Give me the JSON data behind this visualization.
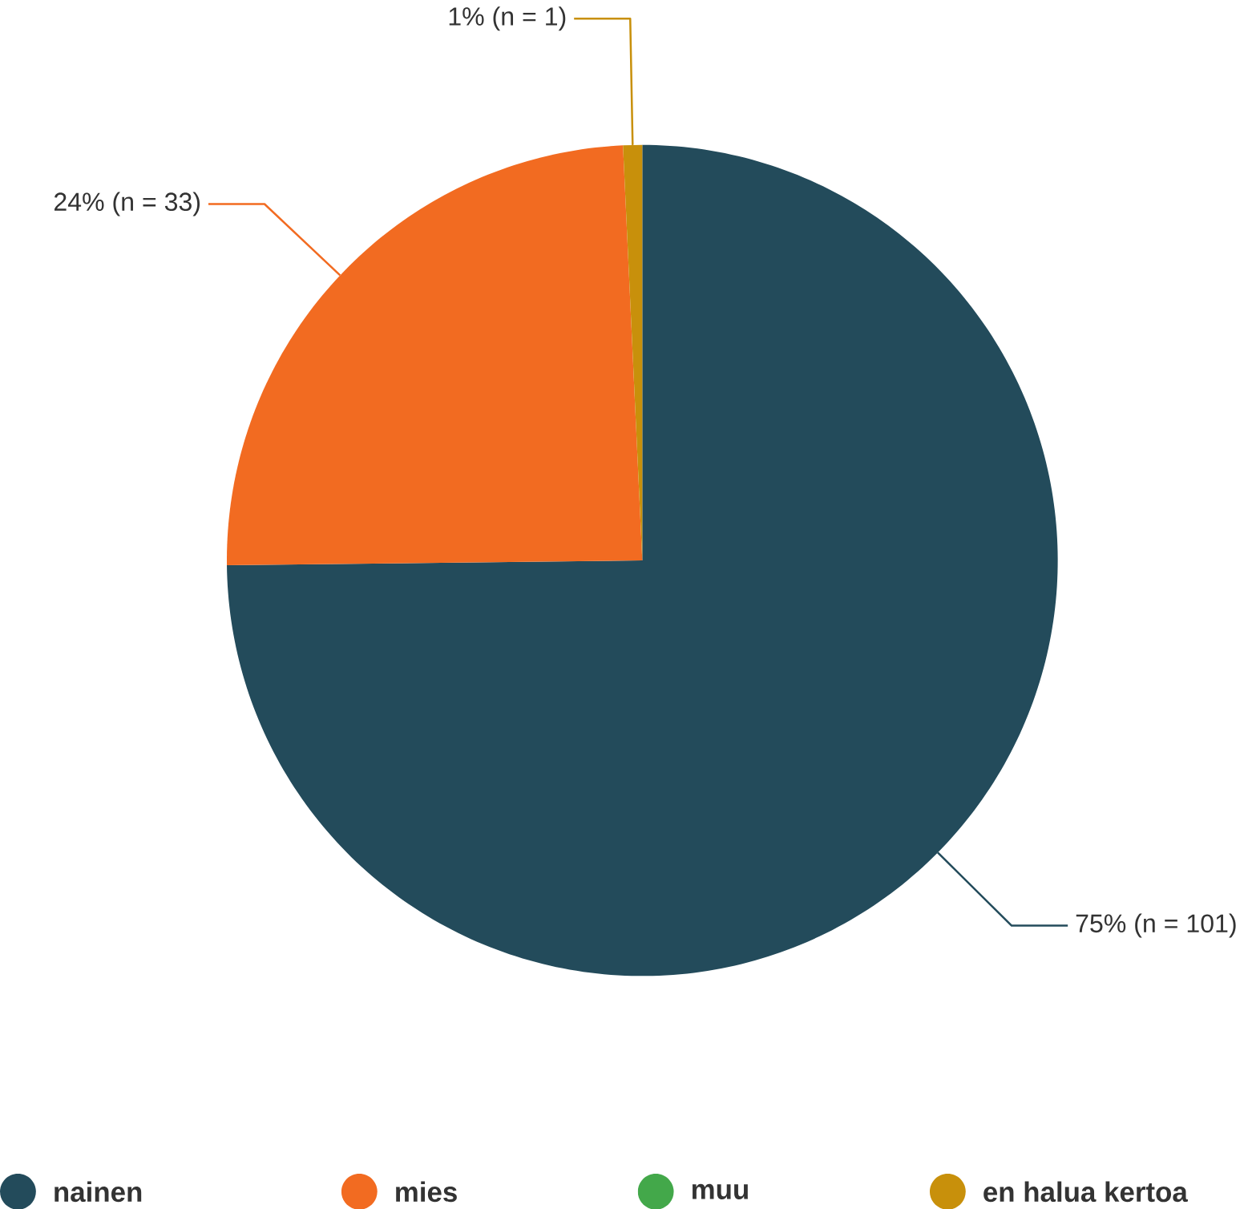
{
  "chart_data": {
    "type": "pie",
    "categories": [
      "nainen",
      "mies",
      "muu",
      "en halua kertoa"
    ],
    "values": [
      101,
      33,
      0,
      1
    ],
    "colors": [
      "#234b5b",
      "#f26b21",
      "#43a84a",
      "#c8900b"
    ],
    "value_labels": [
      "75% (n = 101)",
      "24% (n = 33)",
      null,
      "1% (n = 1)"
    ],
    "legend": "bottom"
  }
}
